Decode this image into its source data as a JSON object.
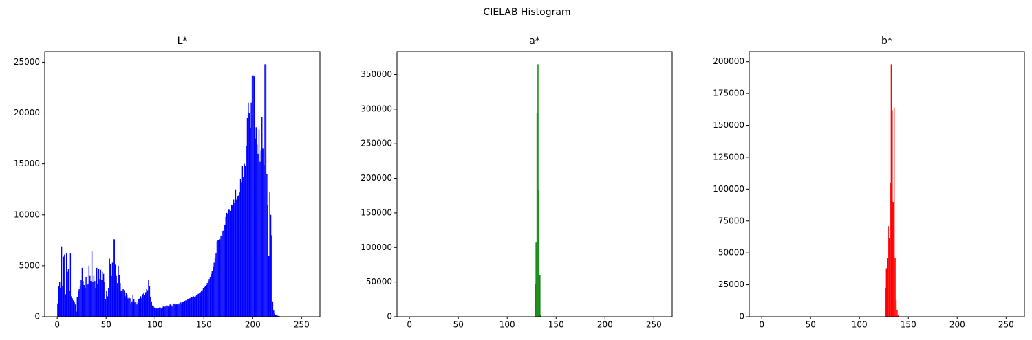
{
  "title": "CIELAB Histogram",
  "chart_data": [
    {
      "type": "histogram",
      "title": "L*",
      "color": "#0000ff",
      "bins": [
        0,
        1,
        2,
        3,
        4,
        5,
        6,
        7,
        8,
        9,
        10,
        11,
        12,
        13,
        14,
        15,
        16,
        17,
        18,
        19,
        20,
        21,
        22,
        23,
        24,
        25,
        26,
        27,
        28,
        29,
        30,
        31,
        32,
        33,
        34,
        35,
        36,
        37,
        38,
        39,
        40,
        41,
        42,
        43,
        44,
        45,
        46,
        47,
        48,
        49,
        50,
        51,
        52,
        53,
        54,
        55,
        56,
        57,
        58,
        59,
        60,
        61,
        62,
        63,
        64,
        65,
        66,
        67,
        68,
        69,
        70,
        71,
        72,
        73,
        74,
        75,
        76,
        77,
        78,
        79,
        80,
        81,
        82,
        83,
        84,
        85,
        86,
        87,
        88,
        89,
        90,
        91,
        92,
        93,
        94,
        95,
        96,
        97,
        98,
        99,
        100,
        101,
        102,
        103,
        104,
        105,
        106,
        107,
        108,
        109,
        110,
        111,
        112,
        113,
        114,
        115,
        116,
        117,
        118,
        119,
        120,
        121,
        122,
        123,
        124,
        125,
        126,
        127,
        128,
        129,
        130,
        131,
        132,
        133,
        134,
        135,
        136,
        137,
        138,
        139,
        140,
        141,
        142,
        143,
        144,
        145,
        146,
        147,
        148,
        149,
        150,
        151,
        152,
        153,
        154,
        155,
        156,
        157,
        158,
        159,
        160,
        161,
        162,
        163,
        164,
        165,
        166,
        167,
        168,
        169,
        170,
        171,
        172,
        173,
        174,
        175,
        176,
        177,
        178,
        179,
        180,
        181,
        182,
        183,
        184,
        185,
        186,
        187,
        188,
        189,
        190,
        191,
        192,
        193,
        194,
        195,
        196,
        197,
        198,
        199,
        200,
        201,
        202,
        203,
        204,
        205,
        206,
        207,
        208,
        209,
        210,
        211,
        212,
        213,
        214,
        215,
        216,
        217,
        218,
        219,
        220,
        221,
        222,
        223,
        224,
        225,
        226,
        227,
        228,
        229,
        230,
        231,
        232,
        233,
        234,
        235,
        236,
        237,
        238,
        239,
        240,
        241,
        242,
        243,
        244,
        245,
        246,
        247,
        248,
        249,
        250,
        251,
        252,
        253,
        254,
        255,
        256
      ],
      "values": [
        1300,
        3000,
        3400,
        2800,
        6900,
        3000,
        5900,
        6100,
        2200,
        6200,
        4400,
        4700,
        2500,
        6200,
        2000,
        1800,
        1600,
        1500,
        1200,
        500,
        1900,
        2500,
        2700,
        3000,
        3600,
        4800,
        3500,
        3100,
        2800,
        3900,
        3100,
        3200,
        5000,
        4000,
        3500,
        6400,
        3400,
        4000,
        3500,
        2800,
        4800,
        3200,
        4700,
        3700,
        4600,
        3600,
        4400,
        4200,
        3400,
        1700,
        2500,
        2000,
        2800,
        5700,
        5200,
        4000,
        5300,
        7600,
        7600,
        5100,
        4000,
        3300,
        5000,
        4100,
        3300,
        2500,
        2600,
        2700,
        2600,
        2000,
        2300,
        2100,
        1800,
        1900,
        1800,
        1300,
        1500,
        2100,
        1700,
        1400,
        1500,
        1200,
        1400,
        1700,
        1800,
        2000,
        1800,
        2200,
        2300,
        2100,
        2400,
        2700,
        2600,
        3600,
        3000,
        1900,
        1500,
        1100,
        1000,
        900,
        850,
        800,
        800,
        850,
        900,
        900,
        800,
        900,
        1000,
        950,
        1000,
        1050,
        1100,
        1000,
        1100,
        1200,
        1150,
        1000,
        1200,
        1250,
        1300,
        1200,
        1250,
        1300,
        1200,
        1350,
        1400,
        1300,
        1450,
        1500,
        1550,
        1600,
        1600,
        1700,
        1750,
        1800,
        1850,
        1900,
        1950,
        2000,
        1900,
        2000,
        2100,
        2200,
        2250,
        2300,
        2400,
        2500,
        2600,
        2800,
        2900,
        3000,
        3100,
        3300,
        3500,
        3700,
        3900,
        4200,
        4500,
        4900,
        5300,
        5800,
        6200,
        7400,
        7500,
        7500,
        7600,
        7900,
        8000,
        8400,
        8500,
        9000,
        9800,
        10200,
        10100,
        10500,
        10500,
        10400,
        11000,
        11000,
        11500,
        11200,
        12500,
        11500,
        11800,
        11900,
        12200,
        13500,
        13200,
        14800,
        13700,
        15000,
        14800,
        16800,
        19500,
        21000,
        20000,
        18500,
        21000,
        23700,
        23700,
        23600,
        17500,
        18600,
        16900,
        16000,
        18400,
        15200,
        16300,
        19600,
        16500,
        14900,
        24800,
        24800,
        14000,
        11000,
        6000,
        12200,
        10000,
        8000,
        1500,
        600,
        300,
        200,
        150,
        100,
        80,
        50,
        30,
        20,
        10,
        0,
        0,
        0,
        0,
        0,
        0,
        0,
        0,
        0,
        0,
        0,
        0,
        0,
        0,
        0,
        0,
        0,
        0,
        0,
        0,
        0,
        0,
        0,
        0,
        0
      ],
      "xlim": [
        -12.8,
        268.8
      ],
      "xticks": [
        0,
        50,
        100,
        150,
        200,
        250
      ],
      "ylim": [
        0,
        26040
      ],
      "yticks": [
        0,
        5000,
        10000,
        15000,
        20000,
        25000
      ]
    },
    {
      "type": "histogram",
      "title": "a*",
      "color": "#008000",
      "bins": [
        0,
        128,
        129,
        130,
        131,
        132,
        133,
        134,
        135,
        256
      ],
      "values": [
        0,
        47000,
        107000,
        295000,
        365000,
        183000,
        60000,
        2000,
        0
      ],
      "xlim": [
        -12.8,
        268.8
      ],
      "xticks": [
        0,
        50,
        100,
        150,
        200,
        250
      ],
      "ylim": [
        0,
        383250
      ],
      "yticks": [
        0,
        50000,
        100000,
        150000,
        200000,
        250000,
        300000,
        350000
      ]
    },
    {
      "type": "histogram",
      "title": "b*",
      "color": "#ff0000",
      "bins": [
        0,
        126,
        127,
        128,
        129,
        130,
        131,
        132,
        133,
        134,
        135,
        136,
        137,
        138,
        139,
        140,
        256
      ],
      "values": [
        0,
        22000,
        38000,
        46000,
        71000,
        62000,
        105000,
        198000,
        162000,
        90000,
        164000,
        46000,
        13000,
        5000,
        1000,
        0
      ],
      "xlim": [
        -12.8,
        268.8
      ],
      "xticks": [
        0,
        50,
        100,
        150,
        200,
        250
      ],
      "ylim": [
        0,
        207900
      ],
      "yticks": [
        0,
        25000,
        50000,
        75000,
        100000,
        125000,
        150000,
        175000,
        200000
      ]
    }
  ]
}
